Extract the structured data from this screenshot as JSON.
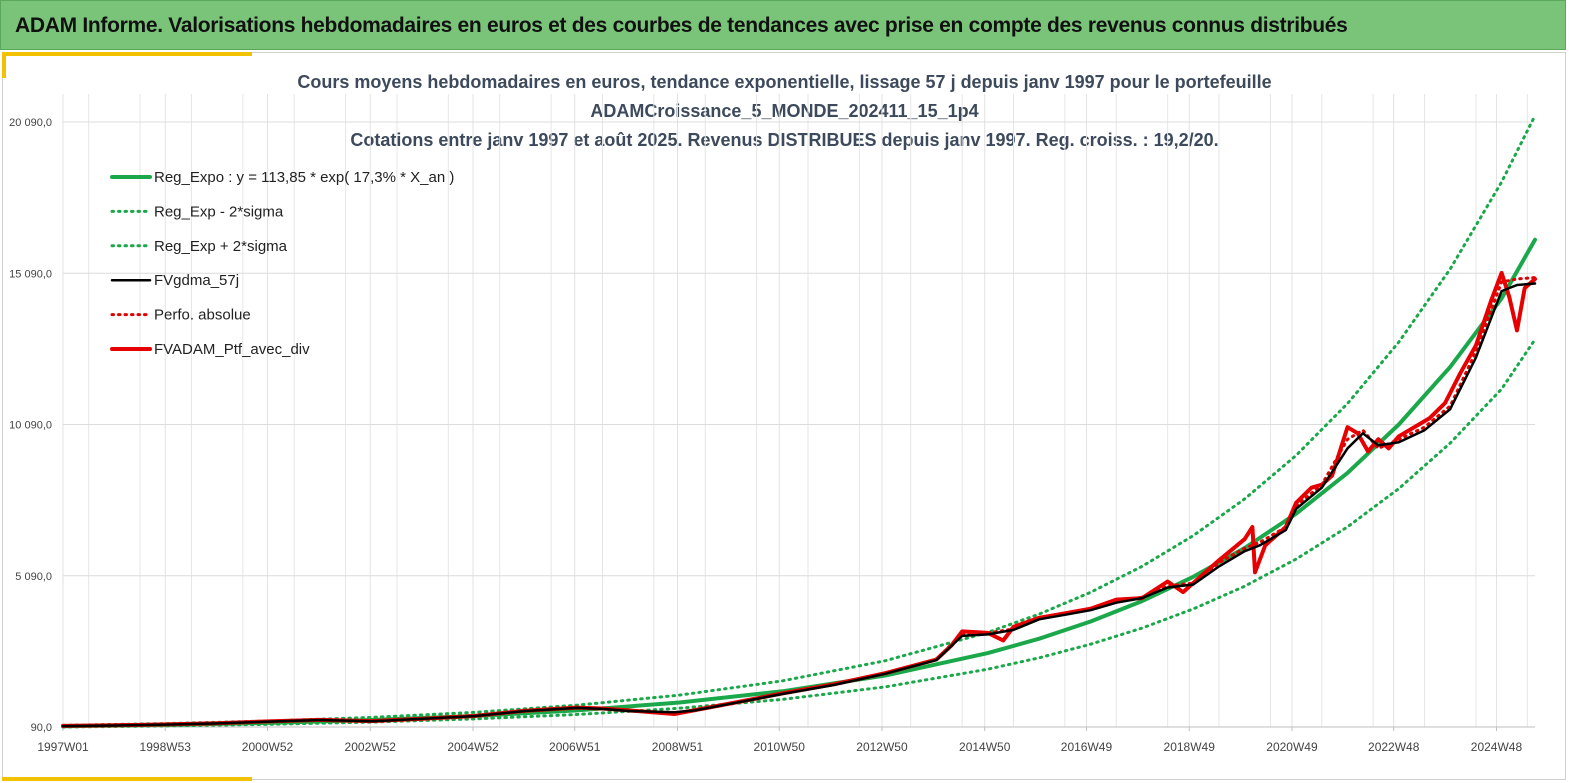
{
  "banner": {
    "title": "ADAM Informe. Valorisations hebdomadaires en euros et des courbes de tendances avec prise en compte des revenus connus distribués"
  },
  "chart_data": {
    "type": "line",
    "title": "Cours moyens hebdomadaires  en euros, tendance exponentielle, lissage 57 j depuis janv 1997 pour le portefeuille",
    "subtitle": "ADAMCroissance_5_MONDE_202411_15_1p4",
    "subtitle2": "Cotations  entre janv 1997 et août 2025. Revenus DISTRIBUES depuis janv 1997. Reg. croiss. : 19,2/20.",
    "xlabel": "",
    "ylabel": "",
    "xlim": [
      1997.0,
      2025.65
    ],
    "ylim": [
      90,
      20090
    ],
    "y_ticks": [
      {
        "value": 90,
        "label": "90,0"
      },
      {
        "value": 5090,
        "label": "5 090,0"
      },
      {
        "value": 10090,
        "label": "10 090,0"
      },
      {
        "value": 15090,
        "label": "15 090,0"
      },
      {
        "value": 20090,
        "label": "20 090,0"
      }
    ],
    "x_ticks": [
      {
        "value": 1997.0,
        "label": "1997W01"
      },
      {
        "value": 1998.99,
        "label": "1998W53"
      },
      {
        "value": 2000.98,
        "label": "2000W52"
      },
      {
        "value": 2002.98,
        "label": "2002W52"
      },
      {
        "value": 2004.98,
        "label": "2004W52"
      },
      {
        "value": 2006.96,
        "label": "2006W51"
      },
      {
        "value": 2008.96,
        "label": "2008W51"
      },
      {
        "value": 2010.94,
        "label": "2010W50"
      },
      {
        "value": 2012.94,
        "label": "2012W50"
      },
      {
        "value": 2014.94,
        "label": "2014W50"
      },
      {
        "value": 2016.92,
        "label": "2016W49"
      },
      {
        "value": 2018.92,
        "label": "2018W49"
      },
      {
        "value": 2020.92,
        "label": "2020W49"
      },
      {
        "value": 2022.9,
        "label": "2022W48"
      },
      {
        "value": 2024.9,
        "label": "2024W48"
      }
    ],
    "grid": {
      "vertical": true,
      "horizontal": true
    },
    "legend_position": "top-left",
    "series": [
      {
        "name": "Reg_Expo : y = 113,85 * exp( 17,3% *  X_an )",
        "color": "#1aa84a",
        "style": "solid",
        "width": 4,
        "x": [
          1997,
          1999,
          2001,
          2003,
          2005,
          2007,
          2009,
          2011,
          2013,
          2015,
          2016,
          2017,
          2018,
          2019,
          2020,
          2021,
          2022,
          2023,
          2024,
          2025,
          2025.65
        ],
        "y": [
          114,
          161,
          227,
          320,
          452,
          638,
          900,
          1271,
          1794,
          2532,
          3009,
          3577,
          4252,
          5054,
          6008,
          7141,
          8489,
          10090,
          11994,
          14257,
          16200
        ]
      },
      {
        "name": "Reg_Exp - 2*sigma",
        "color": "#1aa84a",
        "style": "dotted",
        "width": 3,
        "x": [
          1997,
          1999,
          2001,
          2003,
          2005,
          2007,
          2009,
          2011,
          2013,
          2015,
          2016,
          2017,
          2018,
          2019,
          2020,
          2021,
          2022,
          2023,
          2024,
          2025,
          2025.65
        ],
        "y": [
          90,
          127,
          179,
          253,
          357,
          504,
          712,
          1004,
          1417,
          2000,
          2377,
          2826,
          3359,
          3993,
          4746,
          5641,
          6706,
          7971,
          9475,
          11263,
          12900
        ]
      },
      {
        "name": "Reg_Exp + 2*sigma",
        "color": "#1aa84a",
        "style": "dotted",
        "width": 3,
        "x": [
          1997,
          1999,
          2001,
          2003,
          2005,
          2007,
          2009,
          2011,
          2013,
          2015,
          2016,
          2017,
          2018,
          2019,
          2020,
          2021,
          2022,
          2023,
          2024,
          2025,
          2025.65
        ],
        "y": [
          145,
          204,
          288,
          406,
          574,
          810,
          1143,
          1614,
          2278,
          3216,
          3821,
          4543,
          5400,
          6418,
          7630,
          9069,
          10781,
          12814,
          15232,
          18106,
          20300
        ]
      },
      {
        "name": "FVgdma_57j",
        "color": "#000000",
        "style": "solid",
        "width": 2.5,
        "x": [
          1997,
          1998,
          1999,
          2000,
          2001,
          2002,
          2003,
          2004,
          2005,
          2006,
          2007,
          2007.5,
          2008,
          2008.9,
          2009.3,
          2010,
          2011,
          2012,
          2013,
          2014,
          2014.5,
          2015,
          2015.5,
          2016,
          2016.5,
          2017,
          2017.5,
          2018,
          2018.5,
          2019,
          2019.5,
          2020,
          2020.3,
          2020.8,
          2021,
          2021.5,
          2022,
          2022.3,
          2022.6,
          2023,
          2023.5,
          2024,
          2024.5,
          2025,
          2025.3,
          2025.65
        ],
        "y": [
          120,
          140,
          170,
          210,
          270,
          320,
          280,
          360,
          450,
          620,
          720,
          690,
          620,
          580,
          640,
          860,
          1180,
          1480,
          1850,
          2300,
          3100,
          3150,
          3300,
          3650,
          3800,
          3950,
          4200,
          4350,
          4700,
          4800,
          5400,
          5900,
          6100,
          6600,
          7300,
          8000,
          9300,
          9800,
          9400,
          9500,
          9900,
          10600,
          12300,
          14500,
          14700,
          14750
        ]
      },
      {
        "name": "Perfo. absolue",
        "color": "#e00000",
        "style": "dotted",
        "width": 3,
        "x": [
          1997,
          1998,
          1999,
          2000,
          2001,
          2002,
          2003,
          2004,
          2005,
          2006,
          2007,
          2007.5,
          2008,
          2008.9,
          2009.3,
          2010,
          2011,
          2012,
          2013,
          2014,
          2014.5,
          2015,
          2015.5,
          2016,
          2016.5,
          2017,
          2017.5,
          2018,
          2018.5,
          2019,
          2019.5,
          2020,
          2020.3,
          2020.8,
          2021,
          2021.5,
          2022,
          2022.3,
          2022.6,
          2023,
          2023.5,
          2024,
          2024.5,
          2025,
          2025.3,
          2025.65
        ],
        "y": [
          125,
          145,
          175,
          215,
          275,
          325,
          285,
          365,
          455,
          630,
          730,
          700,
          640,
          560,
          650,
          870,
          1200,
          1500,
          1870,
          2320,
          3180,
          3200,
          3330,
          3680,
          3830,
          3980,
          4250,
          4380,
          4750,
          4850,
          5520,
          6000,
          6200,
          6700,
          7400,
          8100,
          9600,
          9900,
          9300,
          9600,
          10000,
          10700,
          12500,
          14800,
          14900,
          14950
        ]
      },
      {
        "name": "FVADAM_Ptf_avec_div",
        "color": "#e60000",
        "style": "solid",
        "width": 4,
        "x": [
          1997,
          1998,
          1999,
          2000,
          2001,
          2002,
          2003,
          2004,
          2005,
          2006,
          2007,
          2007.5,
          2008,
          2008.9,
          2009.3,
          2010,
          2011,
          2012,
          2013,
          2014,
          2014.3,
          2014.5,
          2015,
          2015.3,
          2015.5,
          2016,
          2016.5,
          2017,
          2017.5,
          2018,
          2018.5,
          2018.8,
          2019,
          2019.5,
          2020,
          2020.15,
          2020.2,
          2020.4,
          2020.8,
          2021,
          2021.3,
          2021.5,
          2021.7,
          2022,
          2022.2,
          2022.4,
          2022.6,
          2022.8,
          2023,
          2023.3,
          2023.6,
          2023.9,
          2024.2,
          2024.5,
          2024.8,
          2025,
          2025.15,
          2025.3,
          2025.45,
          2025.65
        ],
        "y": [
          125,
          145,
          175,
          215,
          275,
          325,
          285,
          365,
          455,
          630,
          730,
          700,
          640,
          520,
          650,
          870,
          1200,
          1500,
          1870,
          2320,
          2800,
          3250,
          3200,
          2950,
          3400,
          3700,
          3850,
          4000,
          4300,
          4350,
          4900,
          4550,
          4850,
          5600,
          6300,
          6700,
          5200,
          6100,
          6700,
          7500,
          8000,
          8100,
          8400,
          10000,
          9800,
          9200,
          9600,
          9300,
          9700,
          10000,
          10300,
          10800,
          11800,
          12700,
          14200,
          15100,
          14300,
          13200,
          14600,
          14900
        ]
      }
    ]
  }
}
